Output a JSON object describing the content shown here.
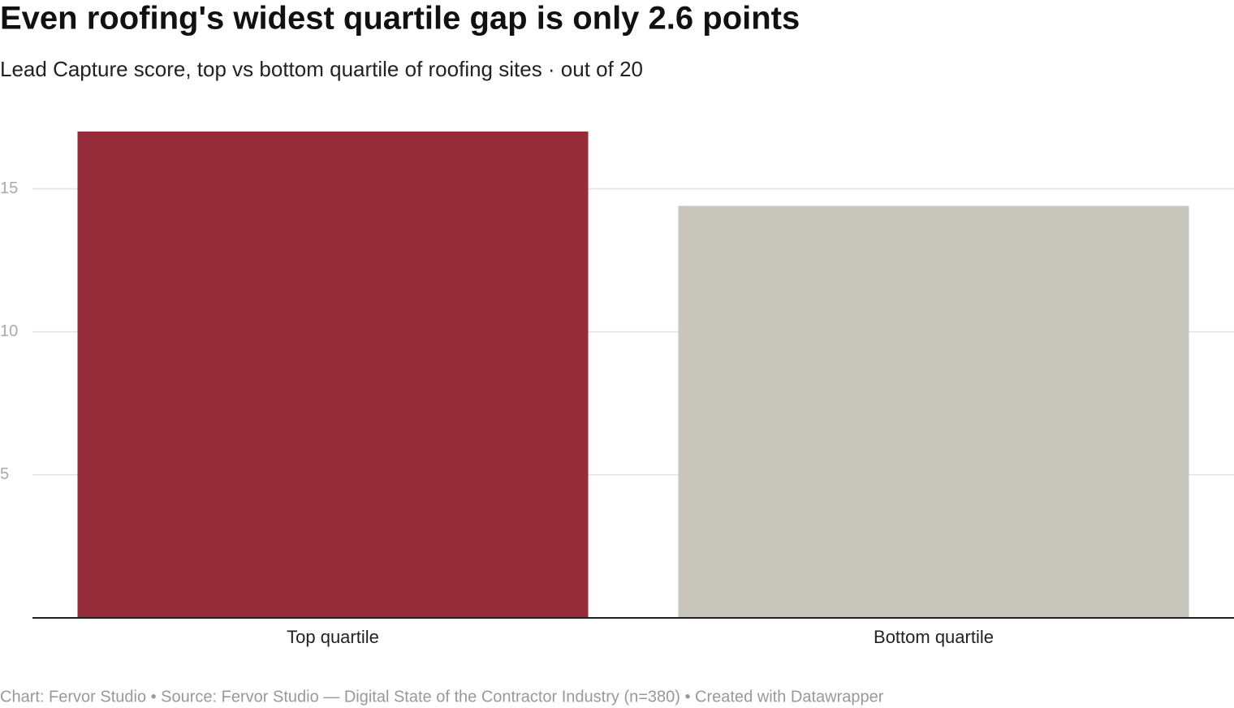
{
  "chart_data": {
    "type": "bar",
    "title": "Even roofing's widest quartile gap is only 2.6 points",
    "subtitle": "Lead Capture score, top vs bottom quartile of roofing sites · out of 20",
    "categories": [
      "Top quartile",
      "Bottom quartile"
    ],
    "values": [
      17.0,
      14.4
    ],
    "colors": [
      "#952d3b",
      "#c9c6bd"
    ],
    "ylim": [
      0,
      17
    ],
    "yticks": [
      5,
      10,
      15
    ],
    "grid": true,
    "footer": "Chart: Fervor Studio • Source: Fervor Studio — Digital State of the Contractor Industry (n=380) • Created with Datawrapper"
  }
}
